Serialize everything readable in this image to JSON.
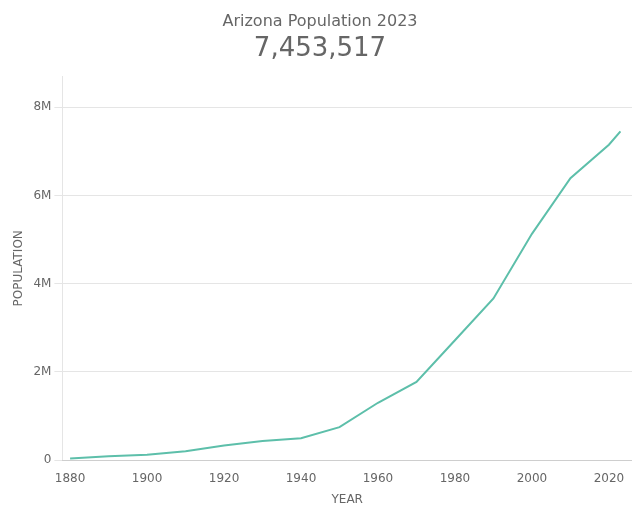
{
  "chart_data": {
    "type": "line",
    "title": "Arizona Population 2023",
    "subtitle": "7,453,517",
    "xlabel": "YEAR",
    "ylabel": "POPULATION",
    "x": [
      1880,
      1890,
      1900,
      1910,
      1920,
      1930,
      1940,
      1950,
      1960,
      1970,
      1980,
      1990,
      2000,
      2010,
      2020,
      2023
    ],
    "values": [
      40440,
      88243,
      122931,
      204354,
      334162,
      435573,
      499261,
      749587,
      1302161,
      1775399,
      2718215,
      3665228,
      5130632,
      6392017,
      7151502,
      7453517
    ],
    "color": "#5dbfaa",
    "xlim": [
      1878,
      2026
    ],
    "xticks": [
      1880,
      1900,
      1920,
      1940,
      1960,
      1980,
      2000,
      2020
    ],
    "ylim": [
      0,
      8700000
    ],
    "yticks": [
      0,
      {
        "value": 2000000,
        "label": "2M"
      },
      {
        "value": 4000000,
        "label": "4M"
      },
      {
        "value": 6000000,
        "label": "6M"
      },
      {
        "value": 8000000,
        "label": "8M"
      }
    ],
    "grid": "y"
  }
}
